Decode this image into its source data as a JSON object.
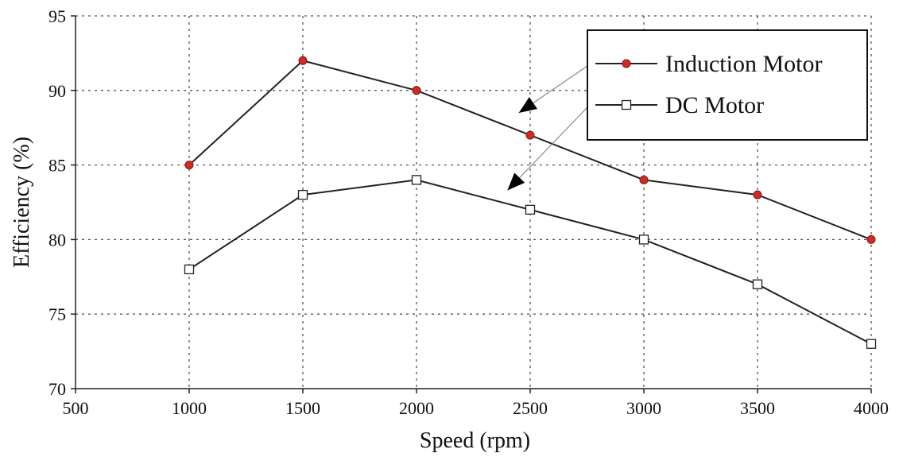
{
  "chart_data": {
    "type": "line",
    "title": "",
    "xlabel": "Speed (rpm)",
    "ylabel": "Efficiency (%)",
    "xlim": [
      500,
      4000
    ],
    "ylim": [
      70,
      95
    ],
    "x_ticks": [
      500,
      1000,
      1500,
      2000,
      2500,
      3000,
      3500,
      4000
    ],
    "y_ticks": [
      70,
      75,
      80,
      85,
      90,
      95
    ],
    "x_tick_labels": [
      "500",
      "1000",
      "1500",
      "2000",
      "2500",
      "3000",
      "3500",
      "4000"
    ],
    "y_tick_labels": [
      "70",
      "75",
      "80",
      "85",
      "90",
      "95"
    ],
    "grid": true,
    "legend_position": "top-right",
    "x": [
      1000,
      1500,
      2000,
      2500,
      3000,
      3500,
      4000
    ],
    "series": [
      {
        "name": "Induction Motor",
        "marker": "filled-circle",
        "marker_color": "#d42a20",
        "values": [
          85,
          92,
          90,
          87,
          84,
          83,
          80
        ]
      },
      {
        "name": "DC Motor",
        "marker": "open-square",
        "marker_color": "#ffffff",
        "values": [
          78,
          83,
          84,
          82,
          80,
          77,
          73
        ]
      }
    ],
    "line_color": "#222222",
    "annotations": [
      {
        "type": "arrow",
        "from_series": "Induction Motor",
        "target_x": 2450,
        "target_y": 88.5
      },
      {
        "type": "arrow",
        "from_series": "DC Motor",
        "target_x": 2400,
        "target_y": 83.3
      }
    ]
  }
}
